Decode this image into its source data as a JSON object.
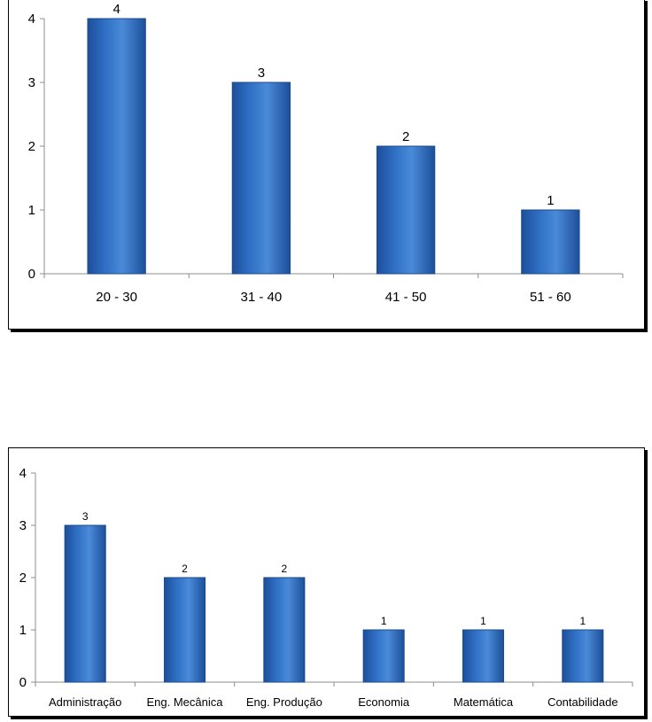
{
  "chart_data": [
    {
      "type": "bar",
      "categories": [
        "20 - 30",
        "31 - 40",
        "41 - 50",
        "51 - 60"
      ],
      "values": [
        4,
        3,
        2,
        1
      ],
      "data_labels": [
        "4",
        "3",
        "2",
        "1"
      ],
      "yticks": [
        "0",
        "1",
        "2",
        "3",
        "4"
      ],
      "ylim": [
        0,
        4
      ],
      "grid": false,
      "bar_color": "#2f6fc4"
    },
    {
      "type": "bar",
      "categories": [
        "Administração",
        "Eng. Mecânica",
        "Eng. Produção",
        "Economia",
        "Matemática",
        "Contabilidade"
      ],
      "values": [
        3,
        2,
        2,
        1,
        1,
        1
      ],
      "data_labels": [
        "3",
        "2",
        "2",
        "1",
        "1",
        "1"
      ],
      "yticks": [
        "0",
        "1",
        "2",
        "3",
        "4"
      ],
      "ylim": [
        0,
        4
      ],
      "grid": false,
      "bar_color": "#2f6fc4"
    }
  ]
}
